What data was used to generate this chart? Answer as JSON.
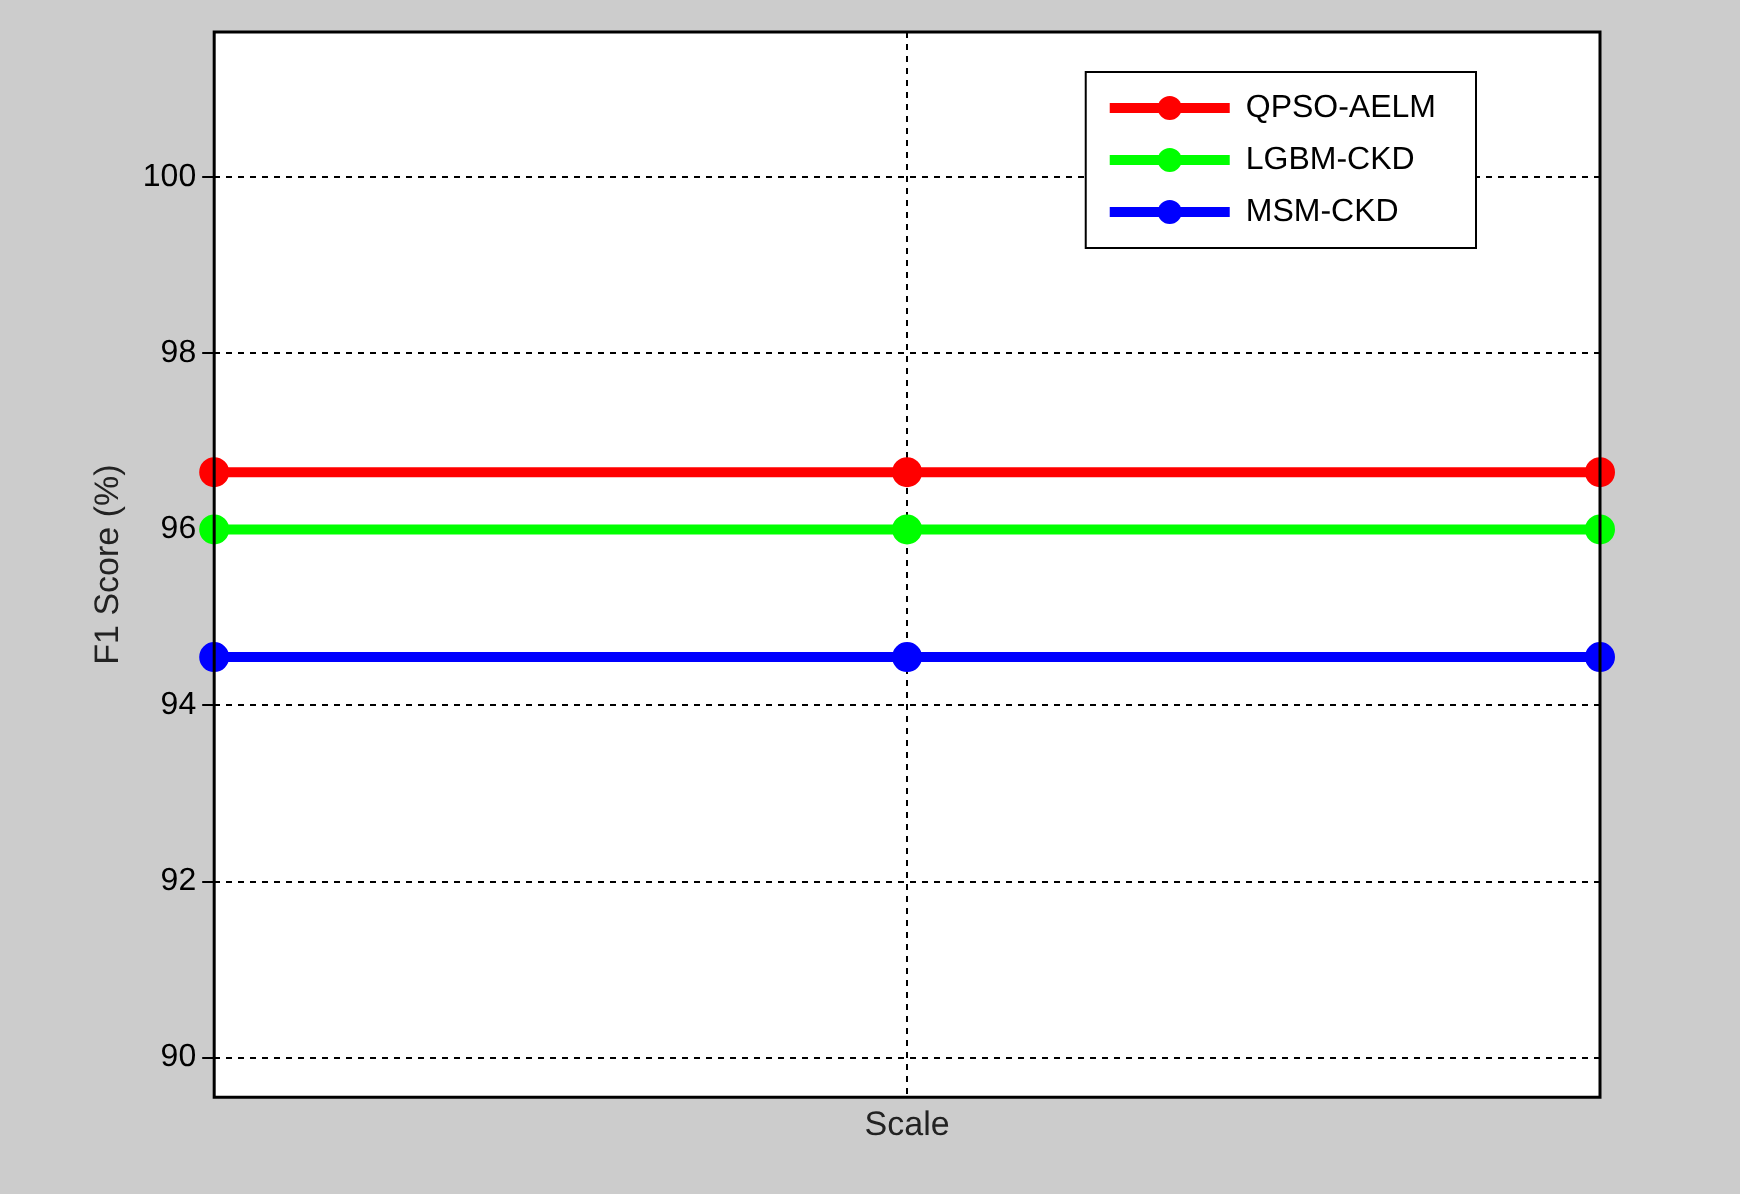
{
  "chart_data": {
    "type": "line",
    "xlabel": "Scale",
    "ylabel": "F1 Score (%)",
    "categories": [
      null,
      null,
      null
    ],
    "series": [
      {
        "name": "QPSO-AELM",
        "color": "#ff0000",
        "values": [
          96.65,
          96.65,
          96.65
        ]
      },
      {
        "name": "LGBM-CKD",
        "color": "#00ff00",
        "values": [
          96.0,
          96.0,
          96.0
        ]
      },
      {
        "name": "MSM-CKD",
        "color": "#0000ff",
        "values": [
          94.55,
          94.55,
          94.55
        ]
      }
    ],
    "ylim": [
      89.55,
      101.65
    ],
    "yticks": [
      90,
      92,
      94,
      96,
      98,
      100
    ],
    "grid": true,
    "legend": "top right",
    "marker": "circle",
    "line_style": "solid",
    "tick_labels": "y"
  }
}
